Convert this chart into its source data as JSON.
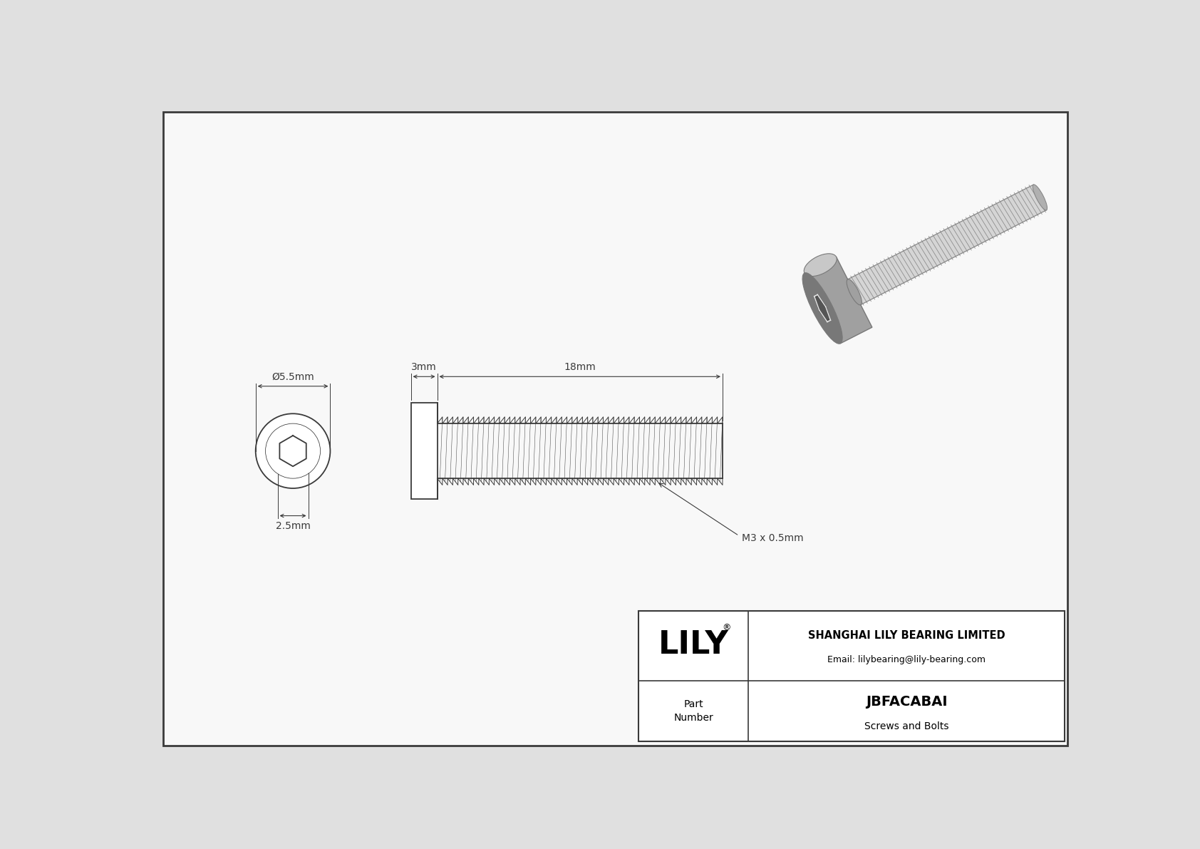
{
  "bg_color": "#e0e0e0",
  "drawing_bg": "#f5f5f5",
  "line_color": "#3a3a3a",
  "title_company": "SHANGHAI LILY BEARING LIMITED",
  "title_email": "Email: lilybearing@lily-bearing.com",
  "part_number": "JBFACABAI",
  "part_category": "Screws and Bolts",
  "part_label_line1": "Part",
  "part_label_line2": "Number",
  "dim_diameter": "Ø5.5mm",
  "dim_hex": "2.5mm",
  "dim_head_len": "3mm",
  "dim_shaft_len": "18mm",
  "dim_thread": "M3 x 0.5mm",
  "logo": "LILY",
  "logo_super": "®",
  "head_color_dark": "#787878",
  "head_color_mid": "#a0a0a0",
  "head_color_light": "#c8c8c8",
  "shaft_color_dark": "#888888",
  "shaft_color_mid": "#b0b0b0",
  "shaft_color_light": "#d5d5d5"
}
